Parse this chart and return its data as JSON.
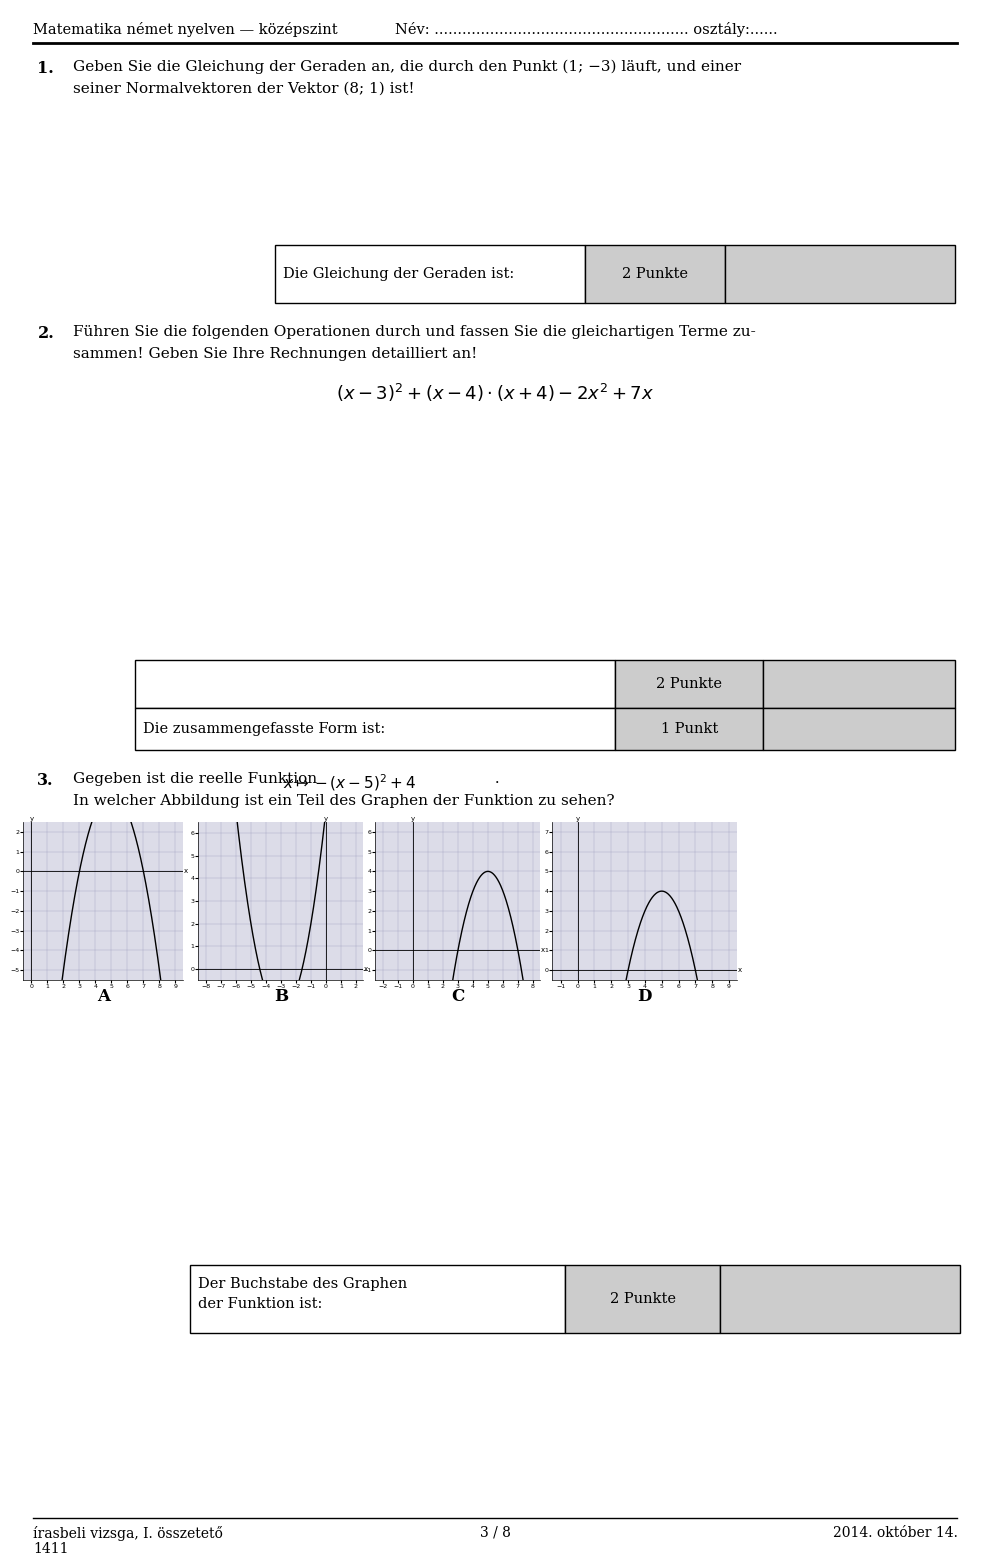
{
  "header_left": "Matematika német nyelven — középszint",
  "header_right": "Név: ....................................................... osztály:......",
  "footer_left": "írasbeli vizsga, I. összetető",
  "footer_center": "3 / 8",
  "footer_right": "2014. október 14.",
  "footer_number": "1411",
  "q1_number": "1.",
  "q1_text_line1": "Geben Sie die Gleichung der Geraden an, die durch den Punkt (1; −3) läuft, und einer",
  "q1_text_line2": "seiner Normalvektoren der Vektor (8; 1) ist!",
  "q1_box_label": "Die Gleichung der Geraden ist:",
  "q1_box_points": "2 Punkte",
  "q2_number": "2.",
  "q2_text_line1": "Führen Sie die folgenden Operationen durch und fassen Sie die gleichartigen Terme zu-",
  "q2_text_line2": "sammen! Geben Sie Ihre Rechnungen detailliert an!",
  "q2_box_label": "Die zusammengefasste Form ist:",
  "q2_box_points1": "2 Punkte",
  "q2_box_points2": "1 Punkt",
  "q3_number": "3.",
  "q3_text1a": "Gegeben ist die reelle Funktion  ",
  "q3_text1b": " .",
  "q3_text2": "In welcher Abbildung ist ein Teil des Graphen der Funktion zu sehen?",
  "q3_box_label1": "Der Buchstabe des Graphen",
  "q3_box_label2": "der Funktion ist:",
  "q3_box_points": "2 Punkte",
  "graph_labels": [
    "A",
    "B",
    "C",
    "D"
  ],
  "bg_color": "#ffffff",
  "box_fill_light": "#cccccc",
  "text_color": "#000000",
  "graph_bg": "#dcdce8",
  "graph_A": {
    "xlim": [
      -0.5,
      9.5
    ],
    "ylim": [
      -5.5,
      2.5
    ],
    "xticks": [
      0,
      1,
      2,
      3,
      4,
      5,
      6,
      7,
      8,
      9
    ],
    "yticks": [
      -5,
      -4,
      -3,
      -2,
      -1,
      0,
      1,
      2
    ],
    "xlabel_ticks": [
      0,
      2,
      4,
      6,
      8
    ],
    "ylabel_ticks": [
      -5,
      -4,
      -3,
      -2,
      -1,
      0,
      1,
      2
    ],
    "func": "neg_parab_5",
    "xmin": 0,
    "xmax": 9
  },
  "graph_B": {
    "xlim": [
      -8.5,
      2.5
    ],
    "ylim": [
      -0.5,
      6.5
    ],
    "xticks": [
      -8,
      -7,
      -6,
      -5,
      -4,
      -3,
      -2,
      -1,
      0,
      1,
      2
    ],
    "yticks": [
      0,
      1,
      2,
      3,
      4,
      5,
      6
    ],
    "func": "pos_parab_m3",
    "xmin": -8,
    "xmax": 2
  },
  "graph_C": {
    "xlim": [
      -2.5,
      8.5
    ],
    "ylim": [
      -1.5,
      6.5
    ],
    "xticks": [
      -2,
      -1,
      0,
      1,
      2,
      3,
      4,
      5,
      6,
      7,
      8
    ],
    "yticks": [
      -1,
      0,
      1,
      2,
      3,
      4,
      5,
      6
    ],
    "func": "neg_parab_5",
    "xmin": -2,
    "xmax": 8
  },
  "graph_D": {
    "xlim": [
      -1.5,
      9.5
    ],
    "ylim": [
      -0.5,
      7.5
    ],
    "xticks": [
      -1,
      0,
      1,
      2,
      3,
      4,
      5,
      6,
      7,
      8,
      9
    ],
    "yticks": [
      0,
      1,
      2,
      3,
      4,
      5,
      6,
      7
    ],
    "func": "neg_parab_5",
    "xmin": -1,
    "xmax": 9
  }
}
